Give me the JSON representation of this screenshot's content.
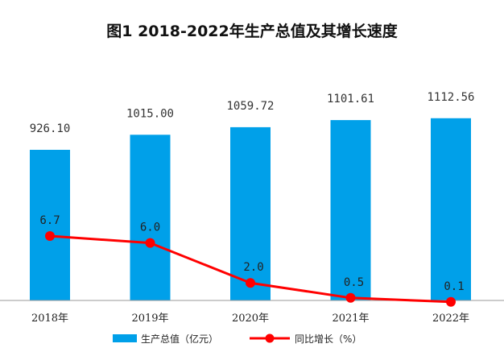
{
  "chart_data": {
    "type": "bar",
    "title": "图1 2018-2022年生产总值及其增长速度",
    "categories": [
      "2018年",
      "2019年",
      "2020年",
      "2021年",
      "2022年"
    ],
    "series": [
      {
        "name": "生产总值（亿元）",
        "type": "bar",
        "values": [
          926.1,
          1015.0,
          1059.72,
          1101.61,
          1112.56
        ],
        "labels": [
          "926.10",
          "1015.00",
          "1059.72",
          "1101.61",
          "1112.56"
        ],
        "color": "#00A0E9"
      },
      {
        "name": "同比增长（%）",
        "type": "line",
        "values": [
          6.7,
          6.0,
          2.0,
          0.5,
          0.1
        ],
        "labels": [
          "6.7",
          "6.0",
          "2.0",
          "0.5",
          "0.1"
        ],
        "color": "#FF0000"
      }
    ],
    "legend_position": "bottom",
    "grid": false
  }
}
